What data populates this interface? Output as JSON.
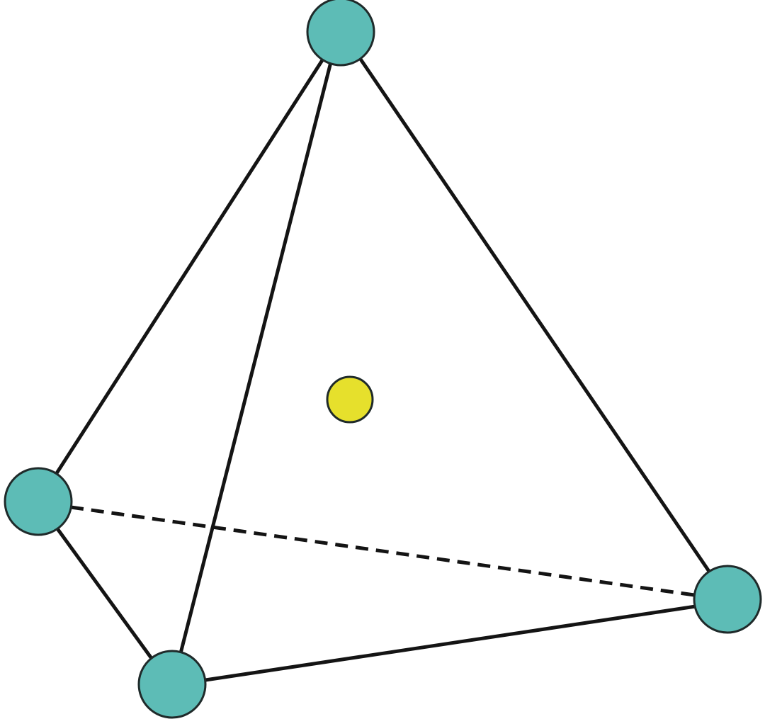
{
  "diagram": {
    "kind": "tetrahedral geometry",
    "colors": {
      "background": "#ffffff",
      "edge": "#141414",
      "outer_atom": "#5dbcb6",
      "central_atom": "#e6e02c"
    },
    "vertices": [
      {
        "id": "top",
        "role": "outer-atom"
      },
      {
        "id": "left",
        "role": "outer-atom"
      },
      {
        "id": "front-bottom",
        "role": "outer-atom"
      },
      {
        "id": "right",
        "role": "outer-atom"
      }
    ],
    "center": {
      "id": "center",
      "role": "central-atom"
    },
    "edges": [
      {
        "from": "top",
        "to": "left",
        "style": "solid"
      },
      {
        "from": "top",
        "to": "front-bottom",
        "style": "solid"
      },
      {
        "from": "top",
        "to": "right",
        "style": "solid"
      },
      {
        "from": "left",
        "to": "front-bottom",
        "style": "solid"
      },
      {
        "from": "front-bottom",
        "to": "right",
        "style": "solid"
      },
      {
        "from": "left",
        "to": "right",
        "style": "dashed"
      }
    ]
  }
}
